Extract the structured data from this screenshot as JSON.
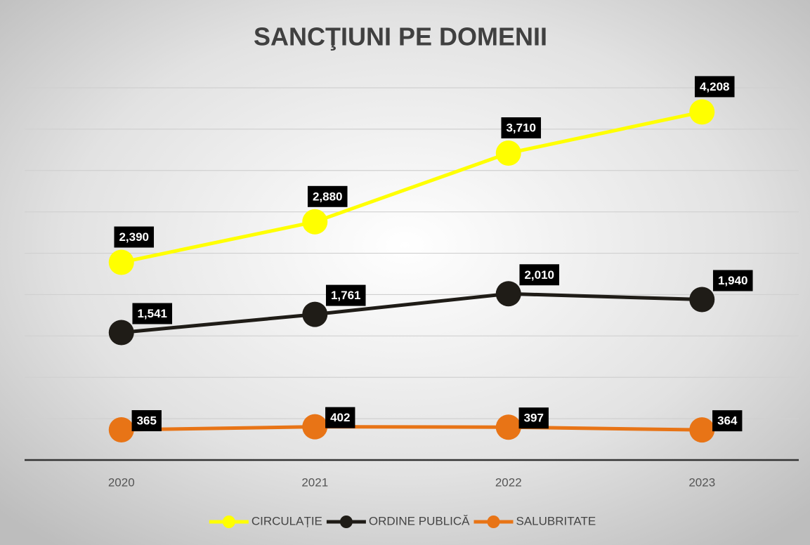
{
  "chart_data": {
    "type": "line",
    "title": "SANCŢIUNI PE DOMENII",
    "categories": [
      "2020",
      "2021",
      "2022",
      "2023"
    ],
    "series": [
      {
        "name": "CIRCULAȚIE",
        "color": "#ffff00",
        "values": [
          2390,
          2880,
          3710,
          4208
        ],
        "value_labels": [
          "2,390",
          "2,880",
          "3,710",
          "4,208"
        ]
      },
      {
        "name": "ORDINE PUBLICĂ",
        "color": "#1f1c17",
        "values": [
          1541,
          1761,
          2010,
          1940
        ],
        "value_labels": [
          "1,541",
          "1,761",
          "2,010",
          "1,940"
        ]
      },
      {
        "name": "SALUBRITATE",
        "color": "#e87416",
        "values": [
          365,
          402,
          397,
          364
        ],
        "value_labels": [
          "365",
          "402",
          "397",
          "364"
        ]
      }
    ],
    "ylim": [
      0,
      4500
    ],
    "yticks": [
      0,
      500,
      1000,
      1500,
      2000,
      2500,
      3000,
      3500,
      4000,
      4500
    ],
    "grid": true,
    "legend": "bottom"
  }
}
